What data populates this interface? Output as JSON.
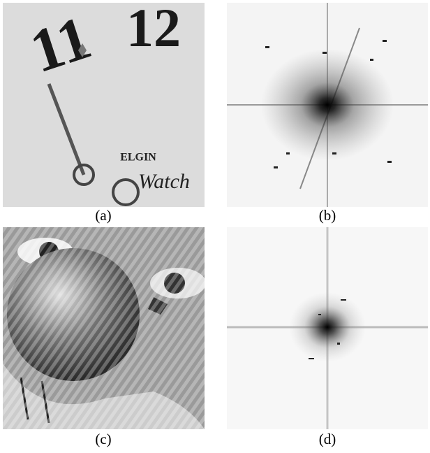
{
  "figure": {
    "panels": [
      {
        "caption": "(a)",
        "texts": [
          "11",
          "12",
          "ELGIN",
          "Watch"
        ]
      },
      {
        "caption": "(b)"
      },
      {
        "caption": "(c)"
      },
      {
        "caption": "(d)"
      }
    ]
  }
}
